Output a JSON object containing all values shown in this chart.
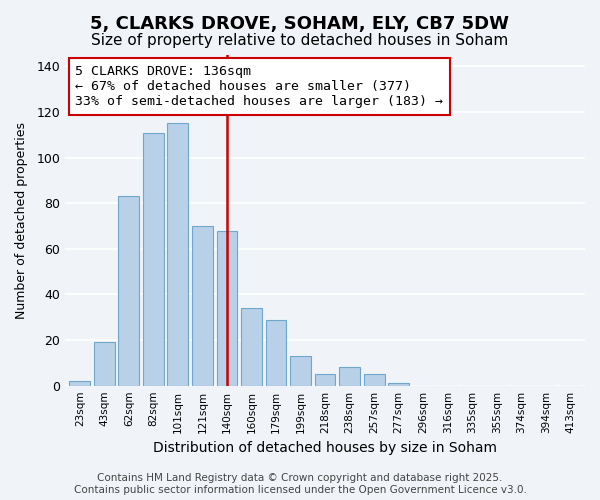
{
  "title": "5, CLARKS DROVE, SOHAM, ELY, CB7 5DW",
  "subtitle": "Size of property relative to detached houses in Soham",
  "xlabel": "Distribution of detached houses by size in Soham",
  "ylabel": "Number of detached properties",
  "bar_labels": [
    "23sqm",
    "43sqm",
    "62sqm",
    "82sqm",
    "101sqm",
    "121sqm",
    "140sqm",
    "160sqm",
    "179sqm",
    "199sqm",
    "218sqm",
    "238sqm",
    "257sqm",
    "277sqm",
    "296sqm",
    "316sqm",
    "335sqm",
    "355sqm",
    "374sqm",
    "394sqm",
    "413sqm"
  ],
  "bar_values": [
    2,
    19,
    83,
    111,
    115,
    70,
    68,
    34,
    29,
    13,
    5,
    8,
    5,
    1,
    0,
    0,
    0,
    0,
    0,
    0,
    0
  ],
  "bar_color": "#b8d0e8",
  "bar_edge_color": "#6fa8cc",
  "vline_x_index": 6,
  "vline_color": "#cc0000",
  "annotation_text": "5 CLARKS DROVE: 136sqm\n← 67% of detached houses are smaller (377)\n33% of semi-detached houses are larger (183) →",
  "annotation_box_color": "#ffffff",
  "annotation_box_edge_color": "#cc0000",
  "ylim": [
    0,
    145
  ],
  "yticks": [
    0,
    20,
    40,
    60,
    80,
    100,
    120,
    140
  ],
  "background_color": "#f0f4f8",
  "footer_text": "Contains HM Land Registry data © Crown copyright and database right 2025.\nContains public sector information licensed under the Open Government Licence v3.0.",
  "title_fontsize": 13,
  "subtitle_fontsize": 11,
  "annotation_fontsize": 9.5,
  "footer_fontsize": 7.5
}
